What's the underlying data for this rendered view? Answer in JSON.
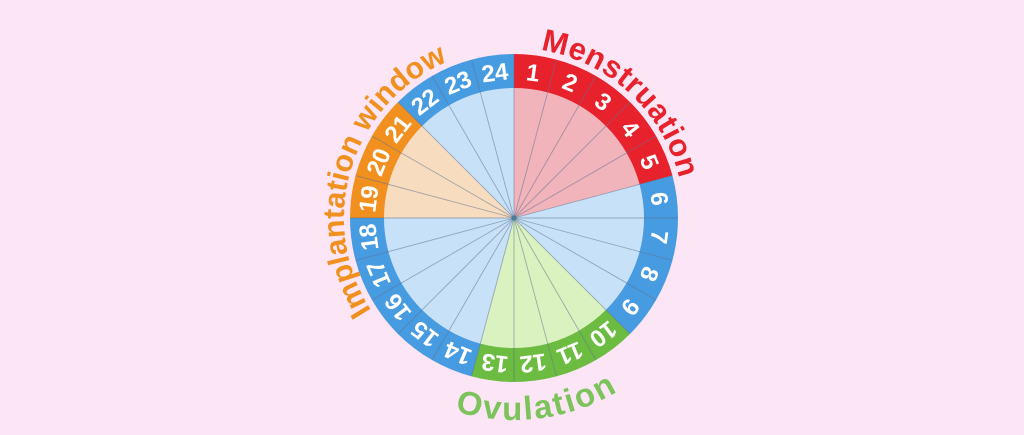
{
  "background_color": "#fce5f5",
  "wheel": {
    "total_days": 24,
    "day_number_color": "#ffffff",
    "divider_color": "rgba(82,104,134,0.5)",
    "center_dot_color": "#4a7d96",
    "phases": [
      {
        "id": "menstruation",
        "days": [
          1,
          2,
          3,
          4,
          5
        ],
        "ring_color": "#e8222c",
        "slice_color": "#f2b4bb"
      },
      {
        "id": "days-6-9",
        "days": [
          6,
          7,
          8,
          9
        ],
        "ring_color": "#479be1",
        "slice_color": "#c7e2f8"
      },
      {
        "id": "ovulation",
        "days": [
          10,
          11,
          12,
          13
        ],
        "ring_color": "#6cbc41",
        "slice_color": "#d9f2c0"
      },
      {
        "id": "days-14-18",
        "days": [
          14,
          15,
          16,
          17,
          18
        ],
        "ring_color": "#479be1",
        "slice_color": "#c7e2f8"
      },
      {
        "id": "implantation-window",
        "days": [
          19,
          20,
          21
        ],
        "ring_color": "#f1901f",
        "slice_color": "#f7dcc0"
      },
      {
        "id": "days-22-24",
        "days": [
          22,
          23,
          24
        ],
        "ring_color": "#479be1",
        "slice_color": "#c7e2f8"
      }
    ],
    "labels": [
      {
        "id": "menstruation",
        "text": "Menstruation",
        "color": "#e8222c"
      },
      {
        "id": "implantation",
        "text": "Implantation window",
        "color": "#f0911f"
      },
      {
        "id": "ovulation",
        "text": "Ovulation",
        "color": "#7dc35c"
      }
    ]
  }
}
